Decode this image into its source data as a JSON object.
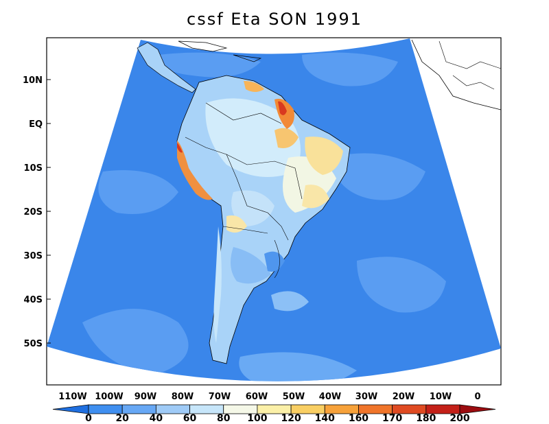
{
  "title": "cssf Eta SON 1991",
  "map": {
    "region": "South America",
    "projection": "conic",
    "lon_labels": [
      "110W",
      "100W",
      "90W",
      "80W",
      "70W",
      "60W",
      "50W",
      "40W",
      "30W",
      "20W",
      "10W",
      "0"
    ],
    "lat_labels": [
      "10N",
      "EQ",
      "10S",
      "20S",
      "30S",
      "40S",
      "50S"
    ],
    "ocean_value_range": [
      20,
      40
    ],
    "land_value_range": [
      60,
      200
    ]
  },
  "colorbar": {
    "levels": [
      "0",
      "20",
      "40",
      "60",
      "80",
      "100",
      "120",
      "140",
      "160",
      "170",
      "180",
      "200"
    ],
    "colors": [
      "#1f6fe0",
      "#3f8ff0",
      "#67a8f5",
      "#9fcbf7",
      "#c7e6fa",
      "#f5f8e8",
      "#fbf0a8",
      "#f9cf63",
      "#f7a23a",
      "#f0752a",
      "#e04b22",
      "#c42018",
      "#9c0c10"
    ]
  }
}
